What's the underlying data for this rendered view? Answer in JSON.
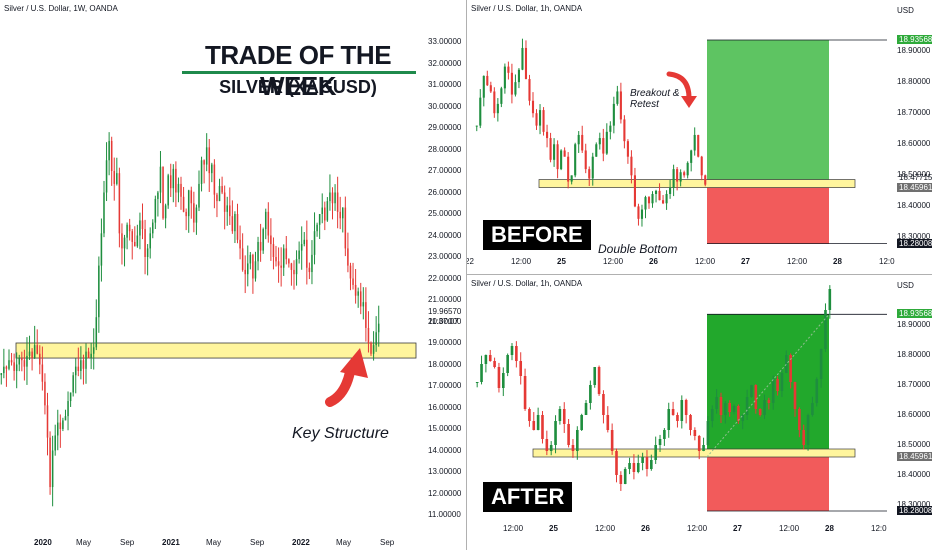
{
  "headline": {
    "title": "TRADE OF THE WEEK",
    "subtitle": "SILVER (XAGUSD)"
  },
  "colors": {
    "up": "#26a69a",
    "up_fill": "#1e8e3e",
    "down": "#e53935",
    "zone": "#fff59d",
    "zone_border": "#3a3a3a",
    "profit": "#2eaa3a",
    "loss": "#f44336"
  },
  "left": {
    "symbol": "Silver / U.S. Dollar, 1W, OANDA",
    "axis_labels": [
      "33.00000",
      "32.00000",
      "31.00000",
      "30.00000",
      "29.00000",
      "28.00000",
      "27.00000",
      "26.00000",
      "25.00000",
      "24.00000",
      "23.00000",
      "22.00000",
      "21.00000",
      "20.00000",
      "19.00000",
      "18.00000",
      "17.00000",
      "16.00000",
      "15.00000",
      "14.00000",
      "13.00000",
      "12.00000",
      "11.00000"
    ],
    "price_tag": "19.96570",
    "time_tag": "11:37:07",
    "x_labels": [
      "2020",
      "May",
      "Sep",
      "2021",
      "May",
      "Sep",
      "2022",
      "May",
      "Sep"
    ],
    "annotation": "Key Structure"
  },
  "before": {
    "symbol": "Silver / U.S. Dollar, 1h, OANDA",
    "currency": "USD",
    "label": "BEFORE",
    "annotation_top": "Breakout &",
    "annotation_top2": "Retest",
    "annotation_bottom": "Double Bottom",
    "axis_labels": [
      "18.90000",
      "18.80000",
      "18.70000",
      "18.60000",
      "18.50000",
      "18.40000",
      "18.30000"
    ],
    "tags": {
      "tp": "18.93568",
      "entry": "18.47715",
      "current": "18.45961",
      "sl": "18.28008"
    },
    "x_labels": [
      "22",
      "12:00",
      "25",
      "12:00",
      "26",
      "12:00",
      "27",
      "12:00",
      "28",
      "12:0"
    ]
  },
  "after": {
    "symbol": "Silver / U.S. Dollar, 1h, OANDA",
    "currency": "USD",
    "label": "AFTER",
    "axis_labels": [
      "18.90000",
      "18.80000",
      "18.70000",
      "18.60000",
      "18.50000",
      "18.40000",
      "18.30000"
    ],
    "tags": {
      "tp": "18.93568",
      "current": "18.45961",
      "sl": "18.28008",
      "sl2": "18.27957"
    },
    "x_labels": [
      "12:00",
      "25",
      "12:00",
      "26",
      "12:00",
      "27",
      "12:00",
      "28",
      "12:0"
    ]
  },
  "chart_data": [
    {
      "type": "candlestick",
      "title": "Silver / U.S. Dollar, 1W, OANDA",
      "x_labels": [
        "2020",
        "May",
        "Sep",
        "2021",
        "May",
        "Sep",
        "2022",
        "May",
        "Sep"
      ],
      "ylim": [
        11,
        33
      ],
      "key_structure_zone": [
        18.3,
        19.0
      ],
      "close": [
        17.6,
        17.9,
        17.8,
        18.2,
        18.1,
        17.7,
        18.0,
        18.3,
        18.2,
        17.9,
        18.4,
        18.6,
        18.3,
        18.9,
        18.5,
        18.0,
        17.2,
        16.1,
        14.6,
        12.3,
        14.0,
        14.7,
        15.3,
        15.0,
        15.4,
        15.6,
        16.3,
        16.7,
        17.5,
        17.9,
        17.7,
        18.2,
        17.8,
        18.6,
        18.3,
        18.5,
        18.8,
        20.2,
        22.6,
        24.1,
        26.0,
        27.5,
        28.4,
        27.0,
        26.4,
        26.9,
        24.1,
        23.4,
        23.9,
        24.5,
        24.2,
        23.7,
        23.5,
        24.0,
        24.7,
        24.3,
        23.0,
        23.4,
        24.1,
        24.6,
        25.7,
        26.0,
        27.2,
        24.8,
        25.4,
        26.8,
        26.2,
        27.1,
        26.0,
        26.4,
        25.8,
        25.1,
        24.9,
        26.1,
        25.5,
        24.6,
        25.3,
        26.4,
        27.5,
        27.3,
        28.1,
        26.9,
        27.3,
        25.9,
        25.6,
        26.3,
        26.0,
        25.1,
        25.4,
        24.9,
        24.2,
        25.0,
        23.8,
        23.4,
        22.4,
        22.2,
        22.7,
        23.1,
        22.0,
        22.8,
        23.7,
        23.3,
        24.3,
        25.1,
        24.0,
        23.6,
        23.0,
        22.8,
        22.6,
        22.5,
        23.4,
        22.9,
        22.7,
        22.4,
        22.2,
        22.9,
        23.3,
        23.6,
        23.8,
        22.5,
        22.3,
        23.1,
        24.2,
        24.5,
        25.0,
        25.3,
        24.7,
        25.6,
        26.0,
        25.5,
        26.0,
        25.1,
        24.8,
        25.3,
        23.4,
        22.6,
        22.0,
        21.7,
        21.2,
        21.4,
        20.7,
        20.9,
        19.7,
        19.0,
        18.5,
        18.9,
        19.5,
        19.9
      ]
    },
    {
      "type": "candlestick",
      "title": "Silver / U.S. Dollar, 1h, OANDA (BEFORE)",
      "ylim": [
        18.25,
        19.0
      ],
      "support_zone": [
        18.45,
        18.48
      ],
      "take_profit": 18.93568,
      "entry": 18.47715,
      "stop_loss": 18.28008,
      "close": [
        18.66,
        18.75,
        18.82,
        18.79,
        18.77,
        18.7,
        18.73,
        18.78,
        18.85,
        18.83,
        18.76,
        18.8,
        18.84,
        18.91,
        18.81,
        18.74,
        18.7,
        18.66,
        18.71,
        18.64,
        18.62,
        18.55,
        18.6,
        18.52,
        18.58,
        18.56,
        18.48,
        18.5,
        18.6,
        18.63,
        18.58,
        18.52,
        18.49,
        18.56,
        18.6,
        18.62,
        18.57,
        18.64,
        18.66,
        18.73,
        18.77,
        18.68,
        18.61,
        18.56,
        18.5,
        18.4,
        18.36,
        18.39,
        18.43,
        18.41,
        18.44,
        18.45,
        18.42,
        18.41,
        18.44,
        18.46,
        18.52,
        18.48,
        18.51,
        18.5,
        18.54,
        18.58,
        18.63,
        18.56,
        18.5,
        18.47
      ]
    },
    {
      "type": "candlestick",
      "title": "Silver / U.S. Dollar, 1h, OANDA (AFTER)",
      "ylim": [
        18.25,
        19.0
      ],
      "support_zone": [
        18.45,
        18.48
      ],
      "take_profit": 18.93568,
      "stop_loss": 18.28008,
      "close": [
        18.71,
        18.77,
        18.8,
        18.78,
        18.76,
        18.69,
        18.74,
        18.8,
        18.83,
        18.78,
        18.73,
        18.62,
        18.58,
        18.55,
        18.6,
        18.52,
        18.48,
        18.5,
        18.58,
        18.62,
        18.57,
        18.5,
        18.48,
        18.55,
        18.6,
        18.64,
        18.7,
        18.76,
        18.67,
        18.6,
        18.55,
        18.48,
        18.4,
        18.37,
        18.42,
        18.44,
        18.41,
        18.44,
        18.46,
        18.42,
        18.45,
        18.5,
        18.52,
        18.55,
        18.62,
        18.6,
        18.58,
        18.65,
        18.6,
        18.55,
        18.53,
        18.48,
        18.5,
        18.58,
        18.62,
        18.66,
        18.6,
        18.64,
        18.61,
        18.63,
        18.58,
        18.6,
        18.66,
        18.7,
        18.62,
        18.6,
        18.65,
        18.64,
        18.72,
        18.68,
        18.74,
        18.8,
        18.71,
        18.62,
        18.55,
        18.5,
        18.6,
        18.64,
        18.72,
        18.82,
        18.95,
        19.02
      ]
    }
  ]
}
